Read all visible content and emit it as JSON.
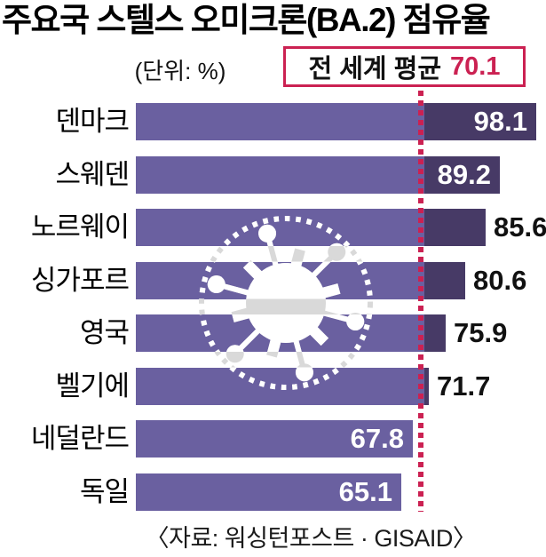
{
  "title": "주요국 스텔스 오미크론(BA.2) 점유율",
  "unit_label": "(단위: %)",
  "average": {
    "label": "전 세계 평균",
    "value": "70.1",
    "numeric": 70.1
  },
  "source": "〈자료: 워싱턴포스트 · GISAID〉",
  "colors": {
    "bar": "#6a60a0",
    "bar_over_average": "#473a66",
    "accent_red": "#cb2152",
    "value_text_inside": "#ffffff",
    "value_text_outside": "#111111",
    "virus_gray": "#d9d9d9",
    "virus_white": "#ffffff",
    "title_text": "#000000"
  },
  "icons": {
    "watermark": "coronavirus-icon"
  },
  "chart_data": {
    "type": "bar",
    "orientation": "horizontal",
    "unit": "%",
    "title": "주요국 스텔스 오미크론(BA.2) 점유율",
    "categories": [
      "덴마크",
      "스웨덴",
      "노르웨이",
      "싱가포르",
      "영국",
      "벨기에",
      "네덜란드",
      "독일"
    ],
    "values": [
      98.1,
      89.2,
      85.6,
      80.6,
      75.9,
      71.7,
      67.8,
      65.1
    ],
    "value_label_position": [
      "inside",
      "inside",
      "outside",
      "outside",
      "outside",
      "outside",
      "inside",
      "inside"
    ],
    "reference_line": {
      "label": "전 세계 평균",
      "value": 70.1,
      "style": "dotted",
      "color": "#cb2152"
    },
    "xlim": [
      0,
      100
    ],
    "grid": false,
    "legend": false,
    "source": "〈자료: 워싱턴포스트 · GISAID〉"
  }
}
